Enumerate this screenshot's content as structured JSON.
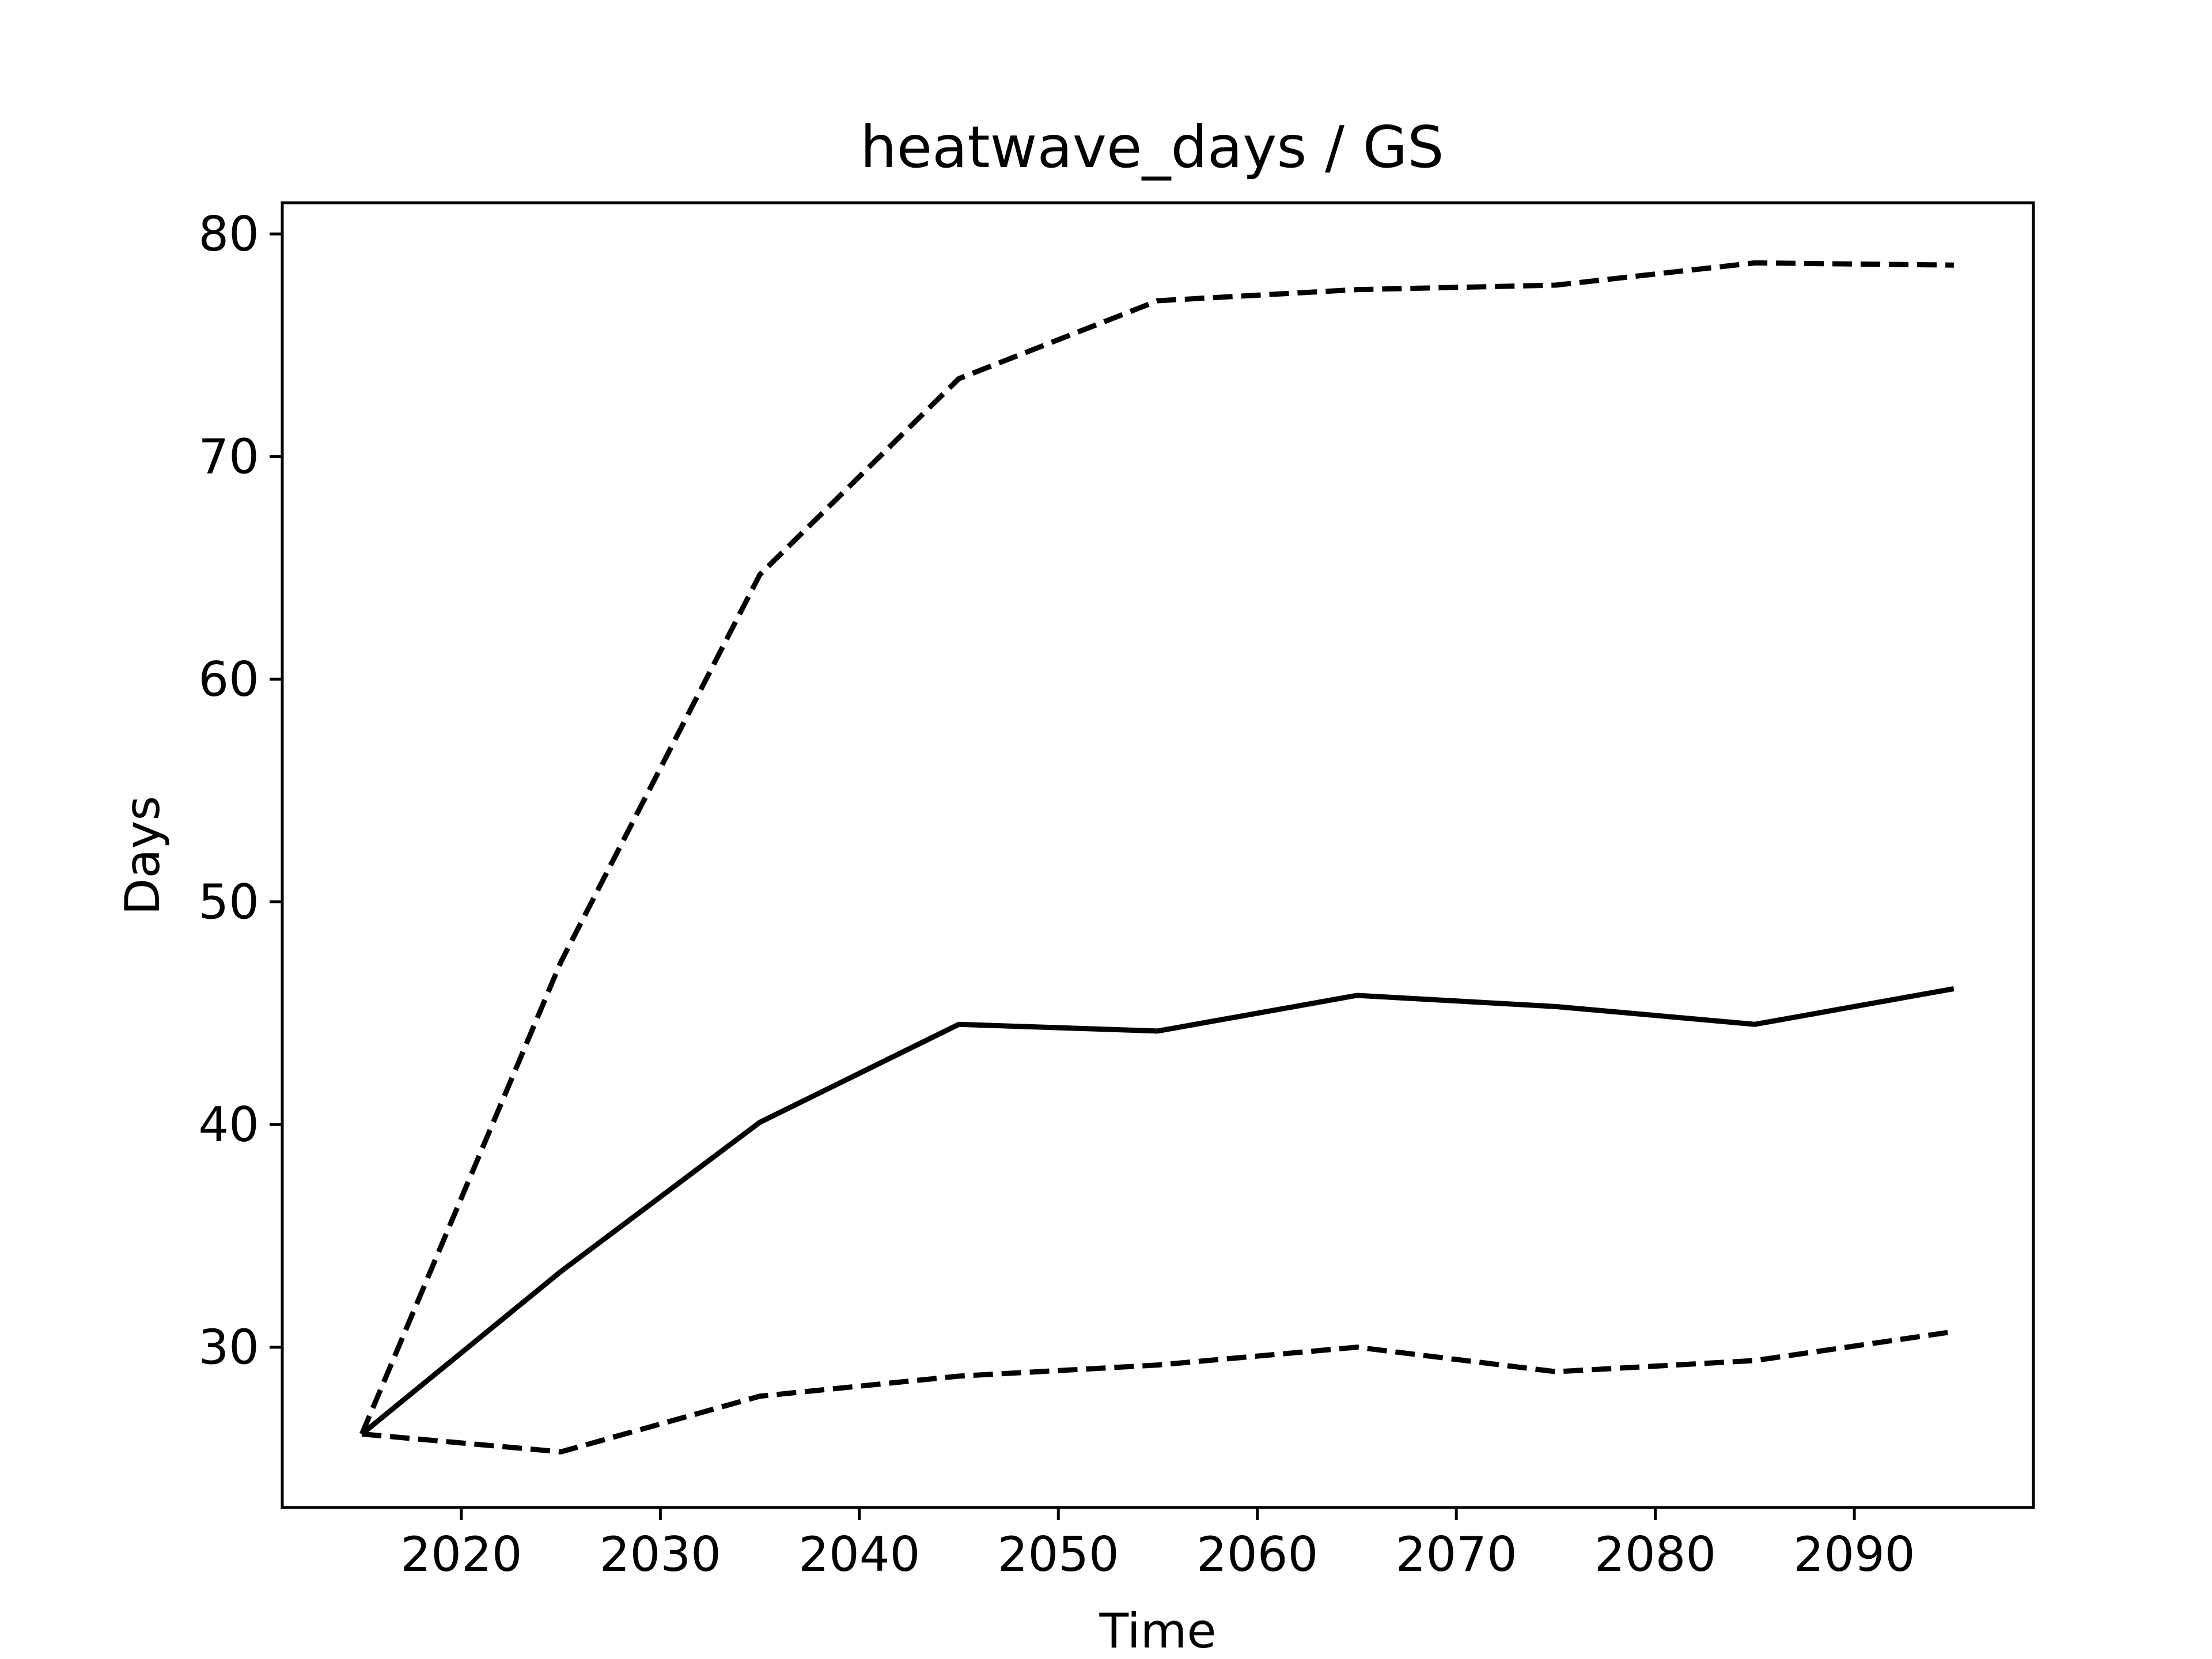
{
  "chart_data": {
    "type": "line",
    "title": "heatwave_days / GS",
    "xlabel": "Time",
    "ylabel": "Days",
    "xlim": [
      2011,
      2099
    ],
    "ylim": [
      22.8,
      81.4
    ],
    "x_ticks": [
      2020,
      2030,
      2040,
      2050,
      2060,
      2070,
      2080,
      2090
    ],
    "y_ticks": [
      30,
      40,
      50,
      60,
      70,
      80
    ],
    "grid": false,
    "legend": "none",
    "x": [
      2015,
      2025,
      2035,
      2045,
      2055,
      2065,
      2075,
      2085,
      2095
    ],
    "series": [
      {
        "style": "dashed",
        "color": "#000000",
        "values": [
          26.1,
          47.3,
          64.7,
          73.5,
          77.0,
          77.5,
          77.7,
          78.7,
          78.6
        ]
      },
      {
        "style": "solid",
        "color": "#000000",
        "values": [
          26.1,
          33.4,
          40.1,
          44.5,
          44.2,
          45.8,
          45.3,
          44.5,
          46.1
        ]
      },
      {
        "style": "dashed",
        "color": "#000000",
        "values": [
          26.1,
          25.3,
          27.8,
          28.7,
          29.2,
          30.0,
          28.9,
          29.4,
          30.7
        ]
      }
    ]
  }
}
